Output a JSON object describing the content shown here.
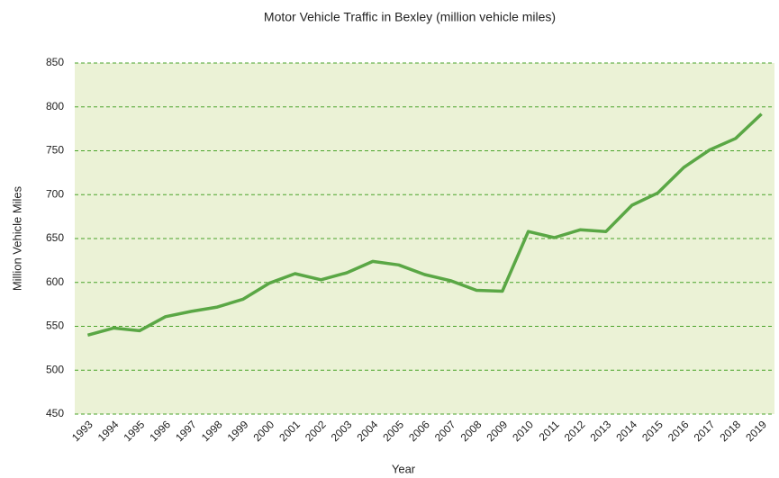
{
  "chart_data": {
    "type": "line",
    "title": "Motor Vehicle Traffic in Bexley (million vehicle miles)",
    "x_label": "Year",
    "y_label": "Million Vehicle Miles",
    "categories": [
      "1993",
      "1994",
      "1995",
      "1996",
      "1997",
      "1998",
      "1999",
      "2000",
      "2001",
      "2002",
      "2003",
      "2004",
      "2005",
      "2006",
      "2007",
      "2008",
      "2009",
      "2010",
      "2011",
      "2012",
      "2013",
      "2014",
      "2015",
      "2016",
      "2017",
      "2018",
      "2019"
    ],
    "values": [
      540,
      548,
      545,
      561,
      567,
      572,
      581,
      599,
      610,
      603,
      611,
      624,
      620,
      609,
      602,
      591,
      590,
      658,
      651,
      660,
      658,
      688,
      702,
      731,
      751,
      764,
      792
    ],
    "color": "#5aa745",
    "ylim": [
      450,
      850
    ],
    "yticks": [
      450,
      500,
      550,
      600,
      650,
      700,
      750,
      800,
      850
    ],
    "grid": true
  }
}
